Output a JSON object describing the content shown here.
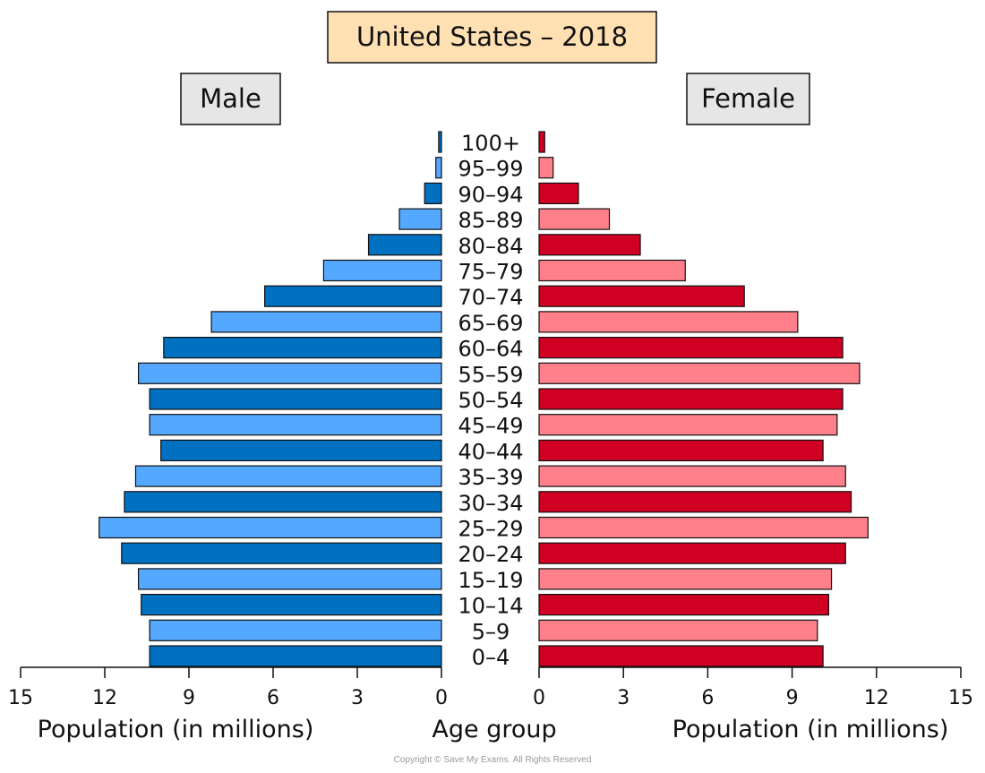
{
  "copyright": "Copyright © Save My Exams. All Rights Reserved",
  "chart_data": {
    "type": "bar",
    "title": "United States – 2018",
    "left_label": "Male",
    "right_label": "Female",
    "xlabel_left": "Population (in millions)",
    "xlabel_center": "Age group",
    "xlabel_right": "Population (in millions)",
    "xlim": [
      0,
      15
    ],
    "xticks": [
      "15",
      "12",
      "9",
      "6",
      "3",
      "0"
    ],
    "xticks_right": [
      "0",
      "3",
      "6",
      "9",
      "12",
      "15"
    ],
    "colors": {
      "male_dark": "#0070c0",
      "male_light": "#55a8ff",
      "female_dark": "#d00022",
      "female_light": "#ff7f8a",
      "title_box": "#ffe0b2",
      "label_box": "#e6e6e6"
    },
    "categories": [
      "100+",
      "95–99",
      "90–94",
      "85–89",
      "80–84",
      "75–79",
      "70–74",
      "65–69",
      "60–64",
      "55–59",
      "50–54",
      "45–49",
      "40–44",
      "35–39",
      "30–34",
      "25–29",
      "20–24",
      "15–19",
      "10–14",
      "5–9",
      "0–4"
    ],
    "series": [
      {
        "name": "Male",
        "values": [
          0.1,
          0.2,
          0.6,
          1.5,
          2.6,
          4.2,
          6.3,
          8.2,
          9.9,
          10.8,
          10.4,
          10.4,
          10.0,
          10.9,
          11.3,
          12.2,
          11.4,
          10.8,
          10.7,
          10.4,
          10.4
        ]
      },
      {
        "name": "Female",
        "values": [
          0.2,
          0.5,
          1.4,
          2.5,
          3.6,
          5.2,
          7.3,
          9.2,
          10.8,
          11.4,
          10.8,
          10.6,
          10.1,
          10.9,
          11.1,
          11.7,
          10.9,
          10.4,
          10.3,
          9.9,
          10.1
        ]
      }
    ]
  }
}
